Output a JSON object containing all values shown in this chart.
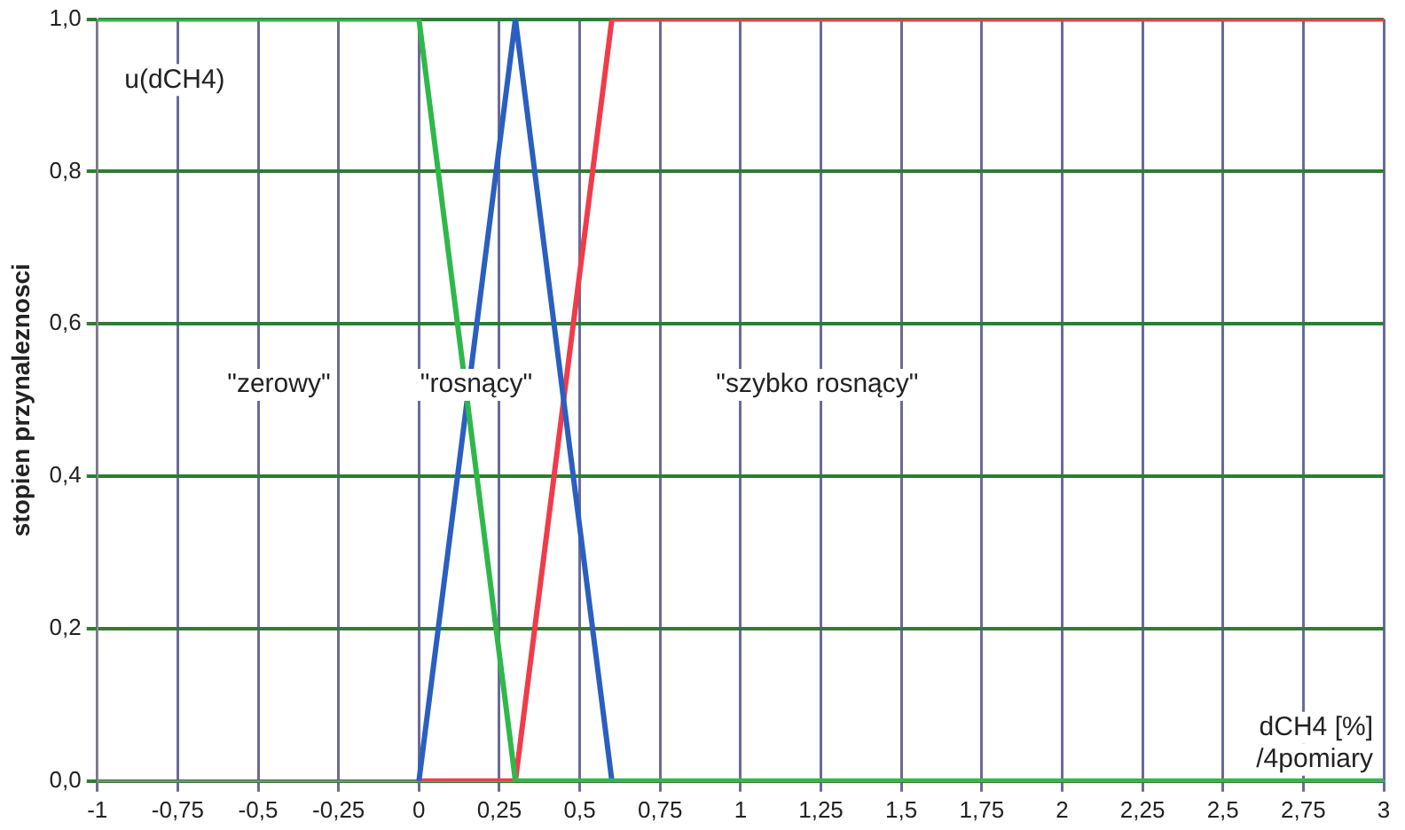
{
  "chart_data": {
    "type": "line",
    "ylabel": "stopien przynaleznosci",
    "xlabel": "dCH4 [%] /4pomiary",
    "xlim": [
      -1,
      3
    ],
    "xticks": [
      -1,
      {
        "value": -0.75,
        "label": "-0,75"
      },
      {
        "value": -0.5,
        "label": "-0,5"
      },
      {
        "value": -0.25,
        "label": "-0,25"
      },
      0,
      {
        "value": 0.25,
        "label": "0,25"
      },
      {
        "value": 0.5,
        "label": "0,5"
      },
      {
        "value": 0.75,
        "label": "0,75"
      },
      1,
      {
        "value": 1.25,
        "label": "1,25"
      },
      {
        "value": 1.5,
        "label": "1,5"
      },
      {
        "value": 1.75,
        "label": "1,75"
      },
      2,
      {
        "value": 2.25,
        "label": "2,25"
      },
      {
        "value": 2.5,
        "label": "2,5"
      },
      {
        "value": 2.75,
        "label": "2,75"
      },
      3
    ],
    "ylim": [
      0,
      1
    ],
    "yticks": [
      {
        "value": 0,
        "label": "0,0"
      },
      {
        "value": 0.2,
        "label": "0,2"
      },
      {
        "value": 0.4,
        "label": "0,4"
      },
      {
        "value": 0.6,
        "label": "0,6"
      },
      {
        "value": 0.8,
        "label": "0,8"
      },
      {
        "value": 1,
        "label": "1,0"
      }
    ],
    "grid": true,
    "legend": false,
    "marker": "none",
    "line_style": "solid",
    "series": [
      {
        "color": "#2fb84a",
        "x": [
          -1,
          0,
          0.3,
          3
        ],
        "values": [
          1,
          1,
          0,
          0
        ]
      },
      {
        "color": "#2a5fc0",
        "x": [
          0,
          0.3,
          0.6
        ],
        "values": [
          0,
          1,
          0
        ]
      },
      {
        "color": "#f03c4a",
        "x": [
          0,
          0.3,
          0.6,
          3
        ],
        "values": [
          0,
          0,
          1,
          1
        ]
      }
    ],
    "annotations": [
      "u(dCH4)",
      "\"zerowy\"",
      "\"rosnący\"",
      "\"szybko rosnący\""
    ]
  }
}
